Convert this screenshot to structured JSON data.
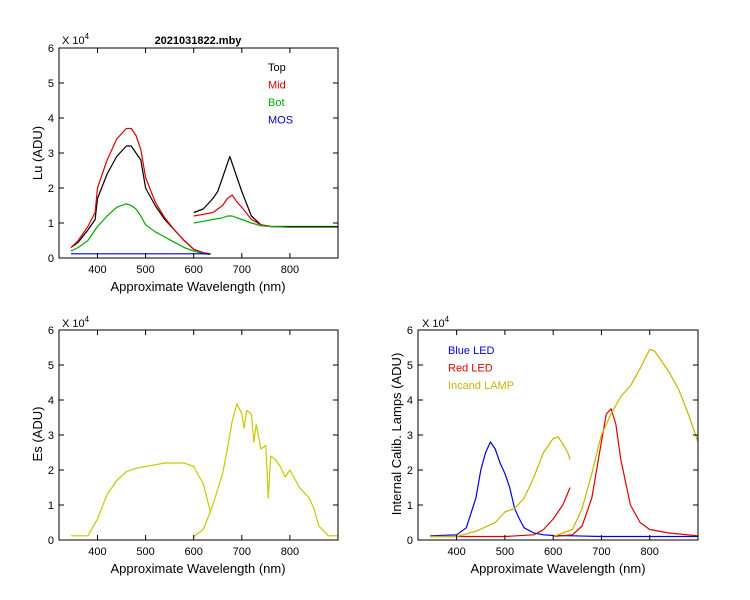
{
  "figure_title": "2021031822.mby",
  "chart_data": [
    {
      "id": "lu",
      "type": "line",
      "title": "2021031822.mby",
      "xlabel": "Approximate Wavelength (nm)",
      "ylabel": "Lu (ADU)",
      "multiplier": "X 10",
      "multiplier_exp": "4",
      "xlim": [
        320,
        900
      ],
      "ylim": [
        0,
        6
      ],
      "xticks": [
        400,
        500,
        600,
        700,
        800
      ],
      "yticks": [
        0,
        1,
        2,
        3,
        4,
        5,
        6
      ],
      "legend_position": "top-right",
      "legend": [
        {
          "name": "Top",
          "color": "#000000"
        },
        {
          "name": "Mid",
          "color": "#dd0000"
        },
        {
          "name": "Bot",
          "color": "#00aa00"
        },
        {
          "name": "MOS",
          "color": "#0000cc"
        }
      ],
      "series": [
        {
          "name": "Top",
          "color": "#000000",
          "segments": [
            {
              "x": [
                345,
                360,
                380,
                395,
                400,
                420,
                440,
                460,
                470,
                480,
                490,
                500,
                520,
                540,
                560,
                580,
                600,
                620,
                635
              ],
              "y": [
                0.3,
                0.45,
                0.8,
                1.1,
                1.7,
                2.4,
                2.9,
                3.2,
                3.2,
                3.0,
                2.8,
                2.0,
                1.5,
                1.1,
                0.8,
                0.5,
                0.25,
                0.15,
                0.12
              ]
            },
            {
              "x": [
                600,
                620,
                640,
                650,
                660,
                670,
                675,
                680,
                690,
                700,
                720,
                740,
                760,
                800,
                850,
                900
              ],
              "y": [
                1.3,
                1.4,
                1.7,
                1.9,
                2.3,
                2.7,
                2.9,
                2.7,
                2.3,
                1.9,
                1.2,
                0.95,
                0.9,
                0.9,
                0.9,
                0.9
              ]
            }
          ]
        },
        {
          "name": "Mid",
          "color": "#dd0000",
          "segments": [
            {
              "x": [
                345,
                360,
                380,
                395,
                400,
                420,
                440,
                460,
                470,
                480,
                490,
                500,
                520,
                540,
                560,
                580,
                600,
                620,
                635
              ],
              "y": [
                0.3,
                0.5,
                0.9,
                1.3,
                2.0,
                2.8,
                3.4,
                3.7,
                3.7,
                3.5,
                3.1,
                2.3,
                1.6,
                1.15,
                0.8,
                0.5,
                0.25,
                0.15,
                0.12
              ]
            },
            {
              "x": [
                600,
                620,
                640,
                660,
                670,
                680,
                690,
                700,
                720,
                740,
                760,
                800,
                850,
                900
              ],
              "y": [
                1.2,
                1.25,
                1.3,
                1.5,
                1.7,
                1.8,
                1.6,
                1.45,
                1.1,
                0.95,
                0.9,
                0.88,
                0.88,
                0.88
              ]
            }
          ]
        },
        {
          "name": "Bot",
          "color": "#00aa00",
          "segments": [
            {
              "x": [
                345,
                360,
                380,
                400,
                420,
                440,
                460,
                470,
                480,
                490,
                500,
                520,
                540,
                560,
                580,
                600,
                620,
                635
              ],
              "y": [
                0.2,
                0.3,
                0.5,
                0.9,
                1.2,
                1.45,
                1.55,
                1.5,
                1.4,
                1.2,
                0.95,
                0.75,
                0.6,
                0.45,
                0.3,
                0.2,
                0.12,
                0.1
              ]
            },
            {
              "x": [
                600,
                620,
                640,
                660,
                670,
                680,
                690,
                700,
                720,
                740,
                760,
                800,
                850,
                900
              ],
              "y": [
                1.0,
                1.05,
                1.1,
                1.15,
                1.2,
                1.2,
                1.15,
                1.1,
                1.0,
                0.92,
                0.9,
                0.88,
                0.88,
                0.88
              ]
            }
          ]
        },
        {
          "name": "MOS",
          "color": "#0000cc",
          "segments": [
            {
              "x": [
                345,
                400,
                500,
                600,
                635
              ],
              "y": [
                0.12,
                0.12,
                0.12,
                0.12,
                0.12
              ]
            }
          ]
        }
      ]
    },
    {
      "id": "es",
      "type": "line",
      "title": "",
      "xlabel": "Approximate Wavelength (nm)",
      "ylabel": "Es  (ADU)",
      "multiplier": "X 10",
      "multiplier_exp": "4",
      "xlim": [
        320,
        900
      ],
      "ylim": [
        0,
        6
      ],
      "xticks": [
        400,
        500,
        600,
        700,
        800
      ],
      "yticks": [
        0,
        1,
        2,
        3,
        4,
        5,
        6
      ],
      "series": [
        {
          "name": "Es",
          "color": "#c8c800",
          "segments": [
            {
              "x": [
                345,
                380,
                400,
                420,
                440,
                460,
                480,
                500,
                520,
                540,
                560,
                580,
                600,
                620,
                635
              ],
              "y": [
                0.12,
                0.12,
                0.6,
                1.3,
                1.7,
                1.95,
                2.05,
                2.1,
                2.15,
                2.2,
                2.2,
                2.2,
                2.1,
                1.6,
                0.8
              ]
            },
            {
              "x": [
                600,
                620,
                640,
                660,
                670,
                680,
                690,
                700,
                705,
                710,
                720,
                725,
                730,
                740,
                750,
                755,
                760,
                770,
                780,
                790,
                800,
                820,
                840,
                850,
                860,
                880,
                900
              ],
              "y": [
                0.1,
                0.3,
                1.0,
                1.9,
                2.6,
                3.4,
                3.9,
                3.6,
                3.2,
                3.7,
                3.6,
                2.8,
                3.3,
                2.6,
                2.7,
                1.2,
                2.4,
                2.3,
                2.1,
                1.8,
                2.0,
                1.5,
                1.2,
                0.9,
                0.4,
                0.12,
                0.12
              ]
            }
          ]
        }
      ]
    },
    {
      "id": "lamps",
      "type": "line",
      "title": "",
      "xlabel": "Approximate Wavelength (nm)",
      "ylabel": "Internal Calib. Lamps  (ADU)",
      "multiplier": "X 10",
      "multiplier_exp": "4",
      "xlim": [
        320,
        900
      ],
      "ylim": [
        0,
        6
      ],
      "xticks": [
        400,
        500,
        600,
        700,
        800
      ],
      "yticks": [
        0,
        1,
        2,
        3,
        4,
        5,
        6
      ],
      "legend_position": "top-left",
      "legend": [
        {
          "name": "Blue LED",
          "color": "#0000dd"
        },
        {
          "name": "Red LED",
          "color": "#dd0000"
        },
        {
          "name": "Incand LAMP",
          "color": "#c8b400"
        }
      ],
      "series": [
        {
          "name": "Blue LED",
          "color": "#0000dd",
          "segments": [
            {
              "x": [
                345,
                400,
                420,
                440,
                450,
                460,
                470,
                480,
                490,
                500,
                510,
                520,
                530,
                540,
                560,
                580,
                600,
                640,
                700,
                800,
                900
              ],
              "y": [
                0.12,
                0.15,
                0.35,
                1.2,
                2.0,
                2.5,
                2.8,
                2.6,
                2.2,
                1.9,
                1.5,
                0.9,
                0.6,
                0.35,
                0.2,
                0.15,
                0.13,
                0.12,
                0.1,
                0.1,
                0.1
              ]
            }
          ]
        },
        {
          "name": "Red LED",
          "color": "#dd0000",
          "segments": [
            {
              "x": [
                345,
                500,
                560,
                580,
                600,
                620,
                635
              ],
              "y": [
                0.1,
                0.1,
                0.15,
                0.3,
                0.6,
                1.0,
                1.5
              ]
            },
            {
              "x": [
                600,
                640,
                660,
                680,
                700,
                710,
                720,
                730,
                740,
                760,
                780,
                800,
                840,
                900
              ],
              "y": [
                0.1,
                0.15,
                0.4,
                1.2,
                2.8,
                3.6,
                3.75,
                3.3,
                2.3,
                1.0,
                0.5,
                0.3,
                0.2,
                0.12
              ]
            }
          ]
        },
        {
          "name": "Incand LAMP",
          "color": "#c8b400",
          "segments": [
            {
              "x": [
                345,
                400,
                440,
                480,
                500,
                520,
                540,
                560,
                580,
                600,
                610,
                620,
                630,
                635
              ],
              "y": [
                0.1,
                0.1,
                0.25,
                0.5,
                0.8,
                0.9,
                1.2,
                1.8,
                2.5,
                2.9,
                2.95,
                2.75,
                2.5,
                2.3
              ]
            },
            {
              "x": [
                600,
                640,
                660,
                680,
                700,
                720,
                740,
                760,
                780,
                800,
                810,
                820,
                840,
                860,
                880,
                900
              ],
              "y": [
                0.1,
                0.3,
                0.9,
                1.9,
                3.0,
                3.6,
                4.1,
                4.4,
                4.9,
                5.45,
                5.4,
                5.2,
                4.8,
                4.3,
                3.6,
                2.8
              ]
            }
          ]
        }
      ]
    }
  ]
}
